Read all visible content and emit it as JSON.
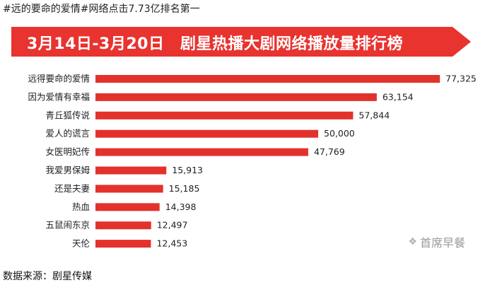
{
  "page": {
    "top_caption": "#远的要命的爱情#网络点击7.73亿排名第一",
    "source": "数据来源：剧星传媒",
    "watermark": "首席早餐",
    "watermark_icon": "wechat-icon"
  },
  "colors": {
    "banner": "#e8332f",
    "bar": "#e3322c",
    "label_text": "#222222"
  },
  "chart_data": {
    "type": "bar",
    "orientation": "horizontal",
    "title": "3月14日-3月20日　剧星热播大剧网络播放量排行榜",
    "xlabel": "",
    "ylabel": "",
    "grid": false,
    "xlim": [
      0,
      80000
    ],
    "categories": [
      "远得要命的爱情",
      "因为爱情有幸福",
      "青丘狐传说",
      "爱人的谎言",
      "女医明妃传",
      "我爱男保姆",
      "还是夫妻",
      "热血",
      "五鼠闹东京",
      "天伦"
    ],
    "values": [
      77325,
      63154,
      57844,
      50000,
      47769,
      15913,
      15185,
      14398,
      12497,
      12453
    ],
    "value_labels": [
      "77,325",
      "63,154",
      "57,844",
      "50,000",
      "47,769",
      "15,913",
      "15,185",
      "14,398",
      "12,497",
      "12,453"
    ]
  }
}
